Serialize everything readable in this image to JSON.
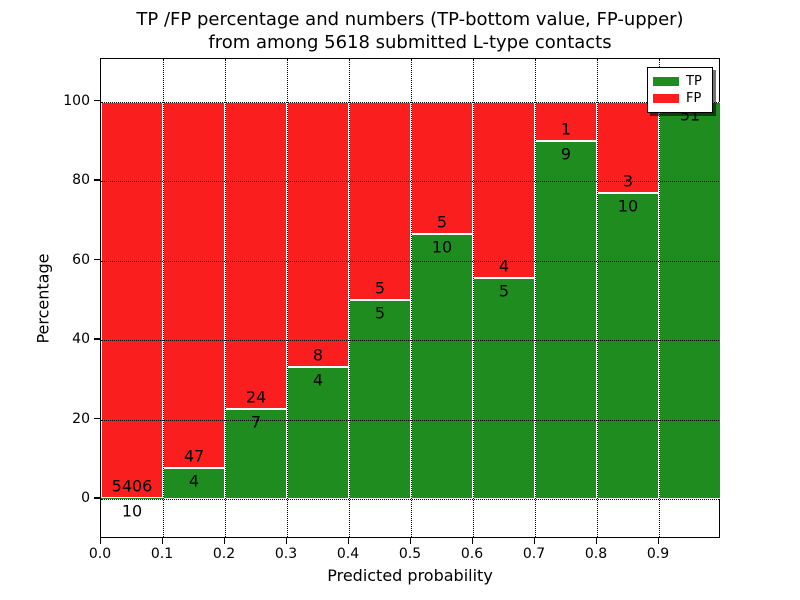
{
  "figure": {
    "title_line1": "TP /FP percentage and numbers (TP-bottom value, FP-upper)",
    "title_line2": "from among 5618 submitted L-type contacts"
  },
  "chart_data": {
    "type": "bar",
    "stacked": true,
    "orientation": "vertical",
    "title": "TP /FP percentage and numbers (TP-bottom value, FP-upper) from among 5618 submitted L-type contacts",
    "xlabel": "Predicted probability",
    "ylabel": "Percentage",
    "x_tick_labels": [
      "0.0",
      "0.1",
      "0.2",
      "0.3",
      "0.4",
      "0.5",
      "0.6",
      "0.7",
      "0.8",
      "0.9"
    ],
    "y_tick_values": [
      0,
      20,
      40,
      60,
      80,
      100
    ],
    "xlim": [
      0.0,
      1.0
    ],
    "ylim": [
      -10.5,
      110.5
    ],
    "grid": true,
    "grid_style": "dotted",
    "total_contacts": 5618,
    "colors": {
      "tp": "#1e8c1e",
      "fp": "#fa1e1e"
    },
    "legend": {
      "position": "upper right",
      "entries": [
        {
          "label": "TP",
          "color": "#1e8c1e"
        },
        {
          "label": "FP",
          "color": "#fa1e1e"
        }
      ]
    },
    "bins": [
      {
        "range": [
          0.0,
          0.1
        ],
        "tp": 10,
        "fp": 5406,
        "tp_pct": 0.18
      },
      {
        "range": [
          0.1,
          0.2
        ],
        "tp": 4,
        "fp": 47,
        "tp_pct": 7.84
      },
      {
        "range": [
          0.2,
          0.3
        ],
        "tp": 7,
        "fp": 24,
        "tp_pct": 22.58
      },
      {
        "range": [
          0.3,
          0.4
        ],
        "tp": 4,
        "fp": 8,
        "tp_pct": 33.33
      },
      {
        "range": [
          0.4,
          0.5
        ],
        "tp": 5,
        "fp": 5,
        "tp_pct": 50.0
      },
      {
        "range": [
          0.5,
          0.6
        ],
        "tp": 10,
        "fp": 5,
        "tp_pct": 66.67
      },
      {
        "range": [
          0.6,
          0.7
        ],
        "tp": 5,
        "fp": 4,
        "tp_pct": 55.56
      },
      {
        "range": [
          0.7,
          0.8
        ],
        "tp": 9,
        "fp": 1,
        "tp_pct": 90.0
      },
      {
        "range": [
          0.8,
          0.9
        ],
        "tp": 10,
        "fp": 3,
        "tp_pct": 76.92
      },
      {
        "range": [
          0.9,
          1.0
        ],
        "tp": 51,
        "fp": 0,
        "tp_pct": 100.0
      }
    ]
  }
}
